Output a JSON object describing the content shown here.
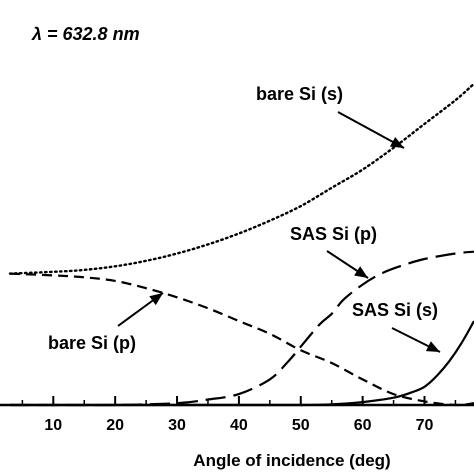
{
  "chart_data": {
    "type": "line",
    "title": "",
    "wavelength_note": "λ = 632.8 nm",
    "xlabel": "Angle of incidence (deg)",
    "ylabel": "",
    "xlim": [
      3,
      78
    ],
    "ylim": [
      0,
      1
    ],
    "x_ticks": [
      10,
      20,
      30,
      40,
      50,
      60,
      70
    ],
    "grid": false,
    "series": [
      {
        "name": "bare Si (s)",
        "style": "dotted",
        "x": [
          3,
          10,
          15,
          20,
          25,
          30,
          35,
          40,
          45,
          50,
          55,
          60,
          65,
          70,
          75,
          78
        ],
        "y": [
          0.36,
          0.365,
          0.37,
          0.38,
          0.395,
          0.415,
          0.44,
          0.47,
          0.505,
          0.545,
          0.595,
          0.645,
          0.705,
          0.77,
          0.835,
          0.88
        ]
      },
      {
        "name": "bare Si (p)",
        "style": "short-dash",
        "x": [
          3,
          10,
          15,
          20,
          25,
          30,
          35,
          40,
          45,
          50,
          55,
          60,
          65,
          70,
          75,
          78
        ],
        "y": [
          0.36,
          0.355,
          0.35,
          0.34,
          0.32,
          0.295,
          0.265,
          0.23,
          0.195,
          0.15,
          0.115,
          0.07,
          0.03,
          0.01,
          0.0,
          0.005
        ]
      },
      {
        "name": "SAS Si (p)",
        "style": "long-dash",
        "x": [
          3,
          10,
          20,
          30,
          35,
          40,
          45,
          48,
          50,
          53,
          55,
          57,
          60,
          63,
          66,
          70,
          75,
          78
        ],
        "y": [
          0.0,
          0.0,
          0.0,
          0.005,
          0.015,
          0.03,
          0.07,
          0.12,
          0.16,
          0.22,
          0.25,
          0.29,
          0.33,
          0.36,
          0.38,
          0.4,
          0.415,
          0.42
        ]
      },
      {
        "name": "SAS Si (s)",
        "style": "solid",
        "x": [
          3,
          20,
          40,
          50,
          55,
          60,
          65,
          68,
          70,
          72,
          74,
          76,
          78
        ],
        "y": [
          0.0,
          0.0,
          0.0,
          0.0,
          0.002,
          0.008,
          0.02,
          0.035,
          0.05,
          0.08,
          0.12,
          0.17,
          0.23
        ]
      }
    ],
    "annotations": [
      {
        "label": "bare Si (s)",
        "series": "bare Si (s)"
      },
      {
        "label": "SAS Si (p)",
        "series": "SAS Si (p)"
      },
      {
        "label": "SAS Si (s)",
        "series": "SAS Si (s)"
      },
      {
        "label": "bare Si (p)",
        "series": "bare Si (p)"
      }
    ]
  }
}
